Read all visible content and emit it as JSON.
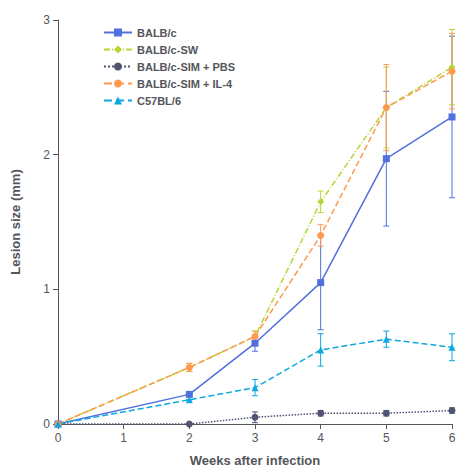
{
  "chart_data": {
    "type": "line",
    "x": [
      0,
      2,
      3,
      4,
      5,
      6
    ],
    "series": [
      {
        "name": "BALB/c",
        "values": [
          0,
          0.22,
          0.6,
          1.05,
          1.97,
          2.28
        ],
        "yerr": [
          0,
          0.0,
          0.06,
          0.35,
          0.5,
          0.6
        ],
        "marker": "square",
        "line_style": "solid"
      },
      {
        "name": "BALB/c-SW",
        "values": [
          0,
          0.42,
          0.65,
          1.65,
          2.35,
          2.65
        ],
        "yerr": [
          0,
          0.03,
          0.04,
          0.08,
          0.3,
          0.28
        ],
        "marker": "diamond",
        "line_style": "dashdot"
      },
      {
        "name": "BALB/c-SIM + PBS",
        "values": [
          0,
          0.0,
          0.05,
          0.08,
          0.08,
          0.1
        ],
        "yerr": [
          0,
          0.0,
          0.04,
          0.02,
          0.02,
          0.02
        ],
        "marker": "circle",
        "line_style": "dotted"
      },
      {
        "name": "BALB/c-SIM + IL-4",
        "values": [
          0,
          0.42,
          0.65,
          1.4,
          2.35,
          2.62
        ],
        "yerr": [
          0,
          0.03,
          0.04,
          0.08,
          0.32,
          0.28
        ],
        "marker": "circle",
        "line_style": "dashed"
      },
      {
        "name": "C57BL/6",
        "values": [
          0,
          0.18,
          0.27,
          0.55,
          0.63,
          0.57
        ],
        "yerr": [
          0,
          0.0,
          0.06,
          0.12,
          0.06,
          0.1
        ],
        "marker": "triangle",
        "line_style": "dashed"
      }
    ],
    "xlabel": "Weeks after infection",
    "ylabel": "Lesion size (mm)",
    "xlim": [
      0,
      6
    ],
    "xticks": [
      0,
      1,
      2,
      3,
      4,
      5,
      6
    ],
    "ylim": [
      0,
      3.0
    ],
    "yticks": [
      0,
      1,
      2,
      3
    ],
    "grid": false,
    "legend": "upper left"
  }
}
